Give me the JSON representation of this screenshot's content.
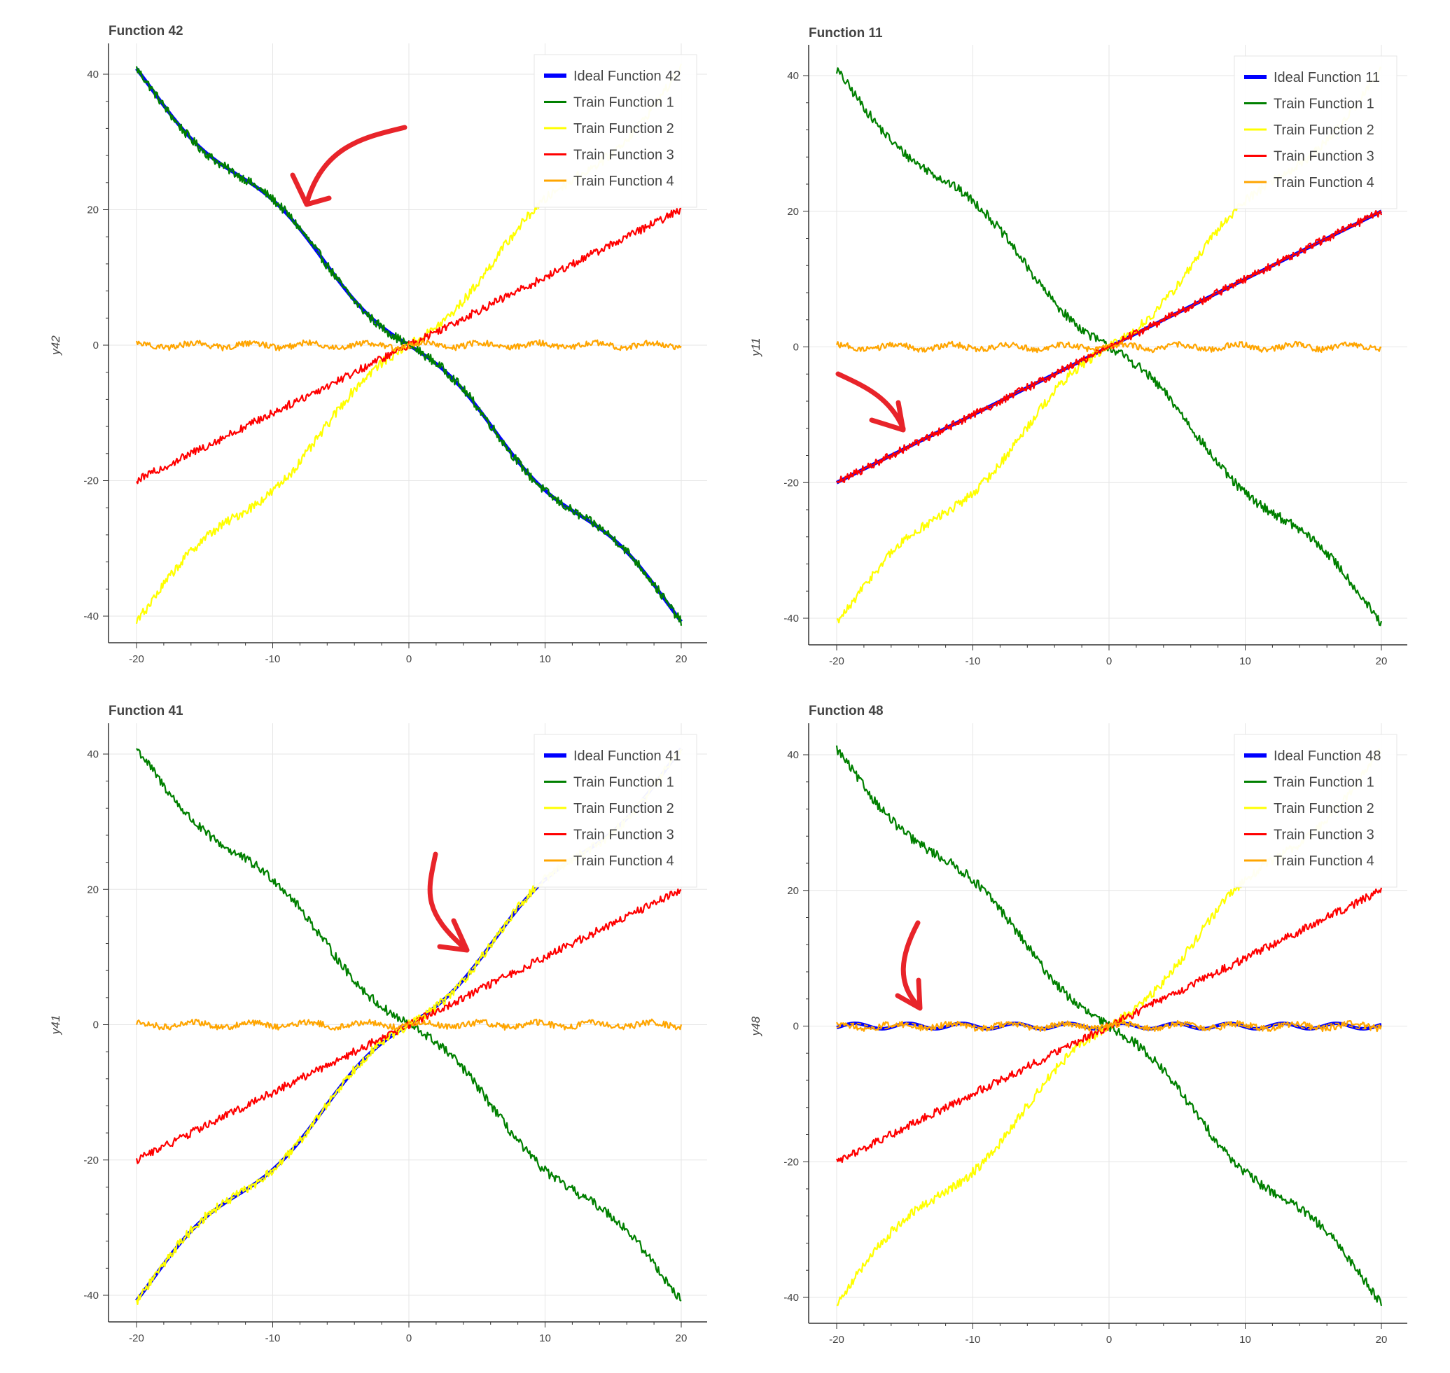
{
  "chart_data": [
    {
      "type": "line",
      "title": "Function 42",
      "ylabel": "y42",
      "xlim": [
        -20,
        20
      ],
      "ylim": [
        -40,
        40
      ],
      "xticks": [
        -20,
        -10,
        0,
        10,
        20
      ],
      "yticks": [
        -40,
        -20,
        0,
        20,
        40
      ],
      "grid": true,
      "legend_position": "top-right",
      "ideal_shape": "neg_wave",
      "series": [
        {
          "name": "Ideal Function 42",
          "color": "#0000ff",
          "width": "thick"
        },
        {
          "name": "Train Function 1",
          "color": "#008000"
        },
        {
          "name": "Train Function 2",
          "color": "#ffff00"
        },
        {
          "name": "Train Function 3",
          "color": "#ff0000"
        },
        {
          "name": "Train Function 4",
          "color": "#ffa500"
        }
      ],
      "x": [
        -20,
        -15,
        -10,
        -5,
        0,
        5,
        10,
        15,
        20
      ],
      "y_ideal": [
        40,
        29.5,
        19.5,
        10.4,
        0,
        -10.4,
        -19.5,
        -29.5,
        -39.5
      ]
    },
    {
      "type": "line",
      "title": "Function 11",
      "ylabel": "y11",
      "xlim": [
        -20,
        20
      ],
      "ylim": [
        -40,
        40
      ],
      "xticks": [
        -20,
        -10,
        0,
        10,
        20
      ],
      "yticks": [
        -40,
        -20,
        0,
        20,
        40
      ],
      "grid": true,
      "legend_position": "top-right",
      "ideal_shape": "linear",
      "series": [
        {
          "name": "Ideal Function 11",
          "color": "#0000ff",
          "width": "thick"
        },
        {
          "name": "Train Function 1",
          "color": "#008000"
        },
        {
          "name": "Train Function 2",
          "color": "#ffff00"
        },
        {
          "name": "Train Function 3",
          "color": "#ff0000"
        },
        {
          "name": "Train Function 4",
          "color": "#ffa500"
        }
      ],
      "x": [
        -20,
        -10,
        0,
        10,
        20
      ],
      "y_ideal": [
        -20,
        -10,
        0,
        10,
        20
      ]
    },
    {
      "type": "line",
      "title": "Function 41",
      "ylabel": "y41",
      "xlim": [
        -20,
        20
      ],
      "ylim": [
        -40,
        40
      ],
      "xticks": [
        -20,
        -10,
        0,
        10,
        20
      ],
      "yticks": [
        -40,
        -20,
        0,
        20,
        40
      ],
      "grid": true,
      "legend_position": "top-right",
      "ideal_shape": "pos_wave",
      "series": [
        {
          "name": "Ideal Function 41",
          "color": "#0000ff",
          "width": "thick"
        },
        {
          "name": "Train Function 1",
          "color": "#008000"
        },
        {
          "name": "Train Function 2",
          "color": "#ffff00"
        },
        {
          "name": "Train Function 3",
          "color": "#ff0000"
        },
        {
          "name": "Train Function 4",
          "color": "#ffa500"
        }
      ],
      "x": [
        -20,
        -15,
        -10,
        -5,
        0,
        5,
        10,
        15,
        20
      ],
      "y_ideal": [
        -40,
        -29.5,
        -19.5,
        -10.4,
        0,
        10.4,
        19.5,
        29.5,
        40
      ]
    },
    {
      "type": "line",
      "title": "Function 48",
      "ylabel": "y48",
      "xlim": [
        -20,
        20
      ],
      "ylim": [
        -40,
        40
      ],
      "xticks": [
        -20,
        -10,
        0,
        10,
        20
      ],
      "yticks": [
        -40,
        -20,
        0,
        20,
        40
      ],
      "grid": true,
      "legend_position": "top-right",
      "ideal_shape": "sine_small",
      "series": [
        {
          "name": "Ideal Function 48",
          "color": "#0000ff",
          "width": "thick"
        },
        {
          "name": "Train Function 1",
          "color": "#008000"
        },
        {
          "name": "Train Function 2",
          "color": "#ffff00"
        },
        {
          "name": "Train Function 3",
          "color": "#ff0000"
        },
        {
          "name": "Train Function 4",
          "color": "#ffa500"
        }
      ],
      "x": [
        -20,
        -10,
        0,
        10,
        20
      ],
      "y_ideal": [
        0,
        0,
        0,
        0,
        0
      ]
    }
  ],
  "annotation": {
    "kind": "arrow",
    "color": "#e8242a"
  }
}
